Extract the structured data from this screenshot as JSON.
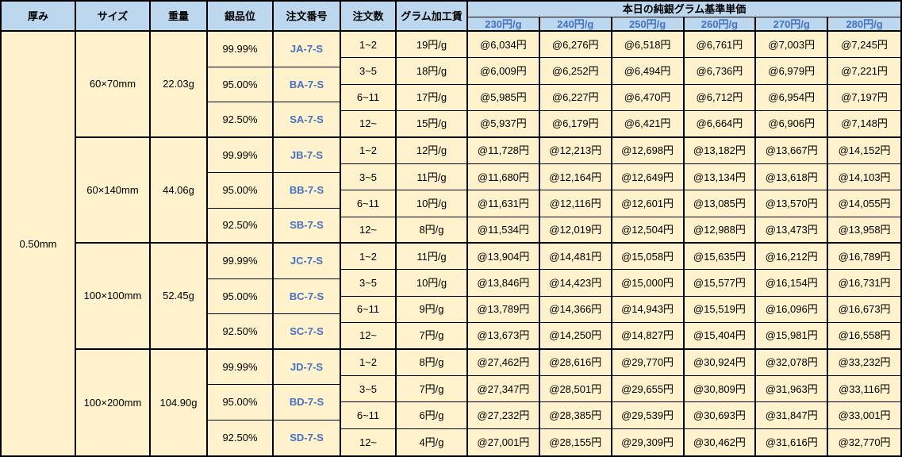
{
  "table": {
    "headers": {
      "thickness": "厚み",
      "size": "サイズ",
      "weight": "重量",
      "purity": "銀品位",
      "order_no": "注文番号",
      "order_qty": "注文数",
      "gram_fee": "グラム加工賃",
      "price_group": "本日の純銀グラム基準単価",
      "price_cols": [
        "230円/g",
        "240円/g",
        "250円/g",
        "260円/g",
        "270円/g",
        "280円/g"
      ]
    },
    "thickness_value": "0.50mm",
    "colors": {
      "header_bg": "#BDD7EE",
      "cell_bg": "#FFF2CC",
      "link_blue": "#4472C4",
      "border": "#000000"
    },
    "blocks": [
      {
        "size": "60×70mm",
        "weight": "22.03g",
        "purities": [
          {
            "purity": "99.99%",
            "code": "JA-7-S"
          },
          {
            "purity": "95.00%",
            "code": "BA-7-S"
          },
          {
            "purity": "92.50%",
            "code": "SA-7-S"
          }
        ],
        "orders": [
          {
            "qty": "1~2",
            "fee": "19円/g",
            "prices": [
              "@6,034円",
              "@6,276円",
              "@6,518円",
              "@6,761円",
              "@7,003円",
              "@7,245円"
            ]
          },
          {
            "qty": "3~5",
            "fee": "18円/g",
            "prices": [
              "@6,009円",
              "@6,252円",
              "@6,494円",
              "@6,736円",
              "@6,979円",
              "@7,221円"
            ]
          },
          {
            "qty": "6~11",
            "fee": "17円/g",
            "prices": [
              "@5,985円",
              "@6,227円",
              "@6,470円",
              "@6,712円",
              "@6,954円",
              "@7,197円"
            ]
          },
          {
            "qty": "12~",
            "fee": "15円/g",
            "prices": [
              "@5,937円",
              "@6,179円",
              "@6,421円",
              "@6,664円",
              "@6,906円",
              "@7,148円"
            ]
          }
        ]
      },
      {
        "size": "60×140mm",
        "weight": "44.06g",
        "purities": [
          {
            "purity": "99.99%",
            "code": "JB-7-S"
          },
          {
            "purity": "95.00%",
            "code": "BB-7-S"
          },
          {
            "purity": "92.50%",
            "code": "SB-7-S"
          }
        ],
        "orders": [
          {
            "qty": "1~2",
            "fee": "12円/g",
            "prices": [
              "@11,728円",
              "@12,213円",
              "@12,698円",
              "@13,182円",
              "@13,667円",
              "@14,152円"
            ]
          },
          {
            "qty": "3~5",
            "fee": "11円/g",
            "prices": [
              "@11,680円",
              "@12,164円",
              "@12,649円",
              "@13,134円",
              "@13,618円",
              "@14,103円"
            ]
          },
          {
            "qty": "6~11",
            "fee": "10円/g",
            "prices": [
              "@11,631円",
              "@12,116円",
              "@12,601円",
              "@13,085円",
              "@13,570円",
              "@14,055円"
            ]
          },
          {
            "qty": "12~",
            "fee": "8円/g",
            "prices": [
              "@11,534円",
              "@12,019円",
              "@12,504円",
              "@12,988円",
              "@13,473円",
              "@13,958円"
            ]
          }
        ]
      },
      {
        "size": "100×100mm",
        "weight": "52.45g",
        "purities": [
          {
            "purity": "99.99%",
            "code": "JC-7-S"
          },
          {
            "purity": "95.00%",
            "code": "BC-7-S"
          },
          {
            "purity": "92.50%",
            "code": "SC-7-S"
          }
        ],
        "orders": [
          {
            "qty": "1~2",
            "fee": "11円/g",
            "prices": [
              "@13,904円",
              "@14,481円",
              "@15,058円",
              "@15,635円",
              "@16,212円",
              "@16,789円"
            ]
          },
          {
            "qty": "3~5",
            "fee": "10円/g",
            "prices": [
              "@13,846円",
              "@14,423円",
              "@15,000円",
              "@15,577円",
              "@16,154円",
              "@16,731円"
            ]
          },
          {
            "qty": "6~11",
            "fee": "9円/g",
            "prices": [
              "@13,789円",
              "@14,366円",
              "@14,943円",
              "@15,519円",
              "@16,096円",
              "@16,673円"
            ]
          },
          {
            "qty": "12~",
            "fee": "7円/g",
            "prices": [
              "@13,673円",
              "@14,250円",
              "@14,827円",
              "@15,404円",
              "@15,981円",
              "@16,558円"
            ]
          }
        ]
      },
      {
        "size": "100×200mm",
        "weight": "104.90g",
        "purities": [
          {
            "purity": "99.99%",
            "code": "JD-7-S"
          },
          {
            "purity": "95.00%",
            "code": "BD-7-S"
          },
          {
            "purity": "92.50%",
            "code": "SD-7-S"
          }
        ],
        "orders": [
          {
            "qty": "1~2",
            "fee": "8円/g",
            "prices": [
              "@27,462円",
              "@28,616円",
              "@29,770円",
              "@30,924円",
              "@32,078円",
              "@33,232円"
            ]
          },
          {
            "qty": "3~5",
            "fee": "7円/g",
            "prices": [
              "@27,347円",
              "@28,501円",
              "@29,655円",
              "@30,809円",
              "@31,963円",
              "@33,116円"
            ]
          },
          {
            "qty": "6~11",
            "fee": "6円/g",
            "prices": [
              "@27,232円",
              "@28,385円",
              "@29,539円",
              "@30,693円",
              "@31,847円",
              "@33,001円"
            ]
          },
          {
            "qty": "12~",
            "fee": "4円/g",
            "prices": [
              "@27,001円",
              "@28,155円",
              "@29,309円",
              "@30,462円",
              "@31,616円",
              "@32,770円"
            ]
          }
        ]
      }
    ]
  }
}
